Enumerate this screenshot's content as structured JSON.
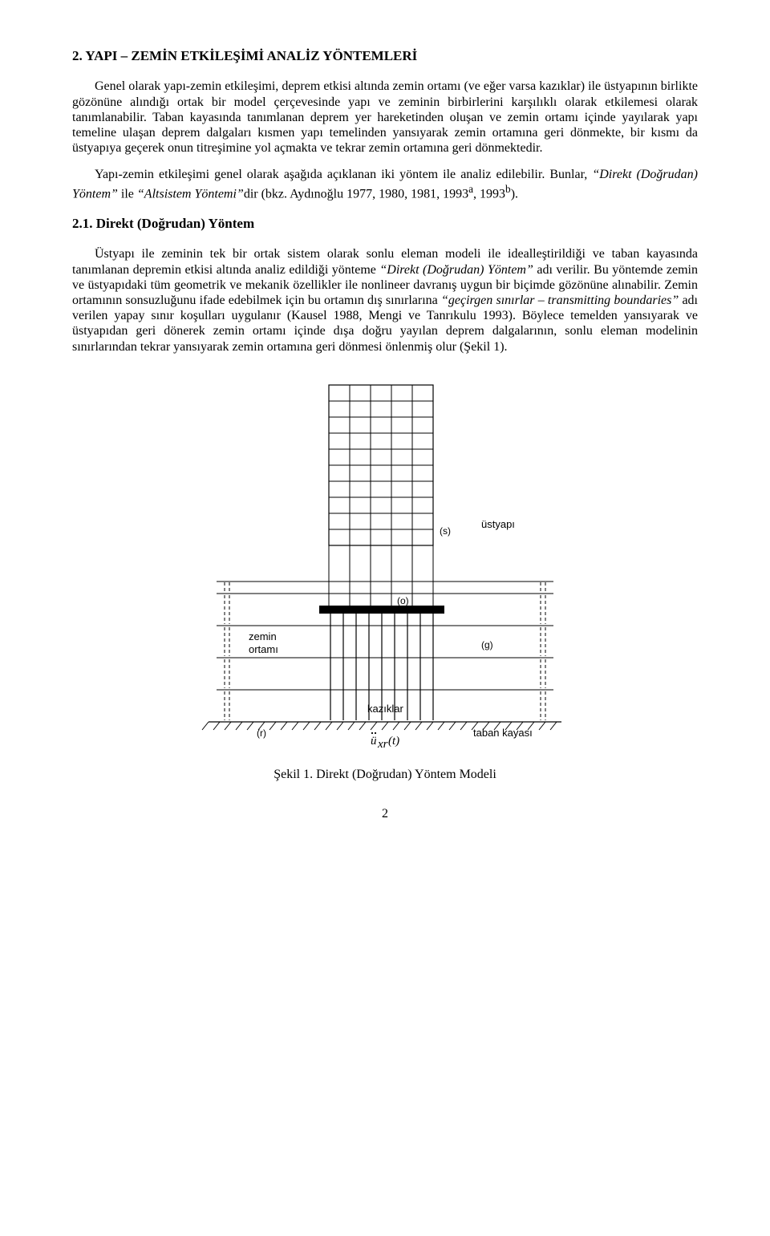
{
  "heading1": "2. YAPI – ZEMİN ETKİLEŞİMİ ANALİZ YÖNTEMLERİ",
  "para1a": "Genel olarak yapı-zemin etkileşimi, deprem etkisi altında zemin ortamı (ve eğer varsa kazıklar) ile üstyapının birlikte gözönüne alındığı ortak bir model çerçevesinde yapı ve zeminin birbirlerini karşılıklı olarak etkilemesi olarak tanımlanabilir. Taban kayasında tanımlanan deprem yer hareketinden oluşan ve zemin ortamı içinde yayılarak yapı temeline ulaşan deprem dalgaları kısmen yapı temelinden yansıyarak zemin ortamına geri dönmekte, bir kısmı da üstyapıya geçerek onun titreşimine yol açmakta ve tekrar zemin ortamına geri dönmektedir.",
  "para2_pre": "Yapı-zemin etkileşimi genel olarak aşağıda açıklanan iki yöntem ile analiz edilebilir. Bunlar, ",
  "para2_i1": "“Direkt (Doğrudan) Yöntem”",
  "para2_mid": " ile ",
  "para2_i2": "“Altsistem Yöntemi”",
  "para2_post": "dir (bkz. Aydınoğlu 1977, 1980, 1981, 1993",
  "para2_sup1": "a",
  "para2_postB": ", 1993",
  "para2_sup2": "b",
  "para2_end": ").",
  "heading2": "2.1. Direkt (Doğrudan) Yöntem",
  "para3_pre": "Üstyapı ile zeminin tek bir ortak sistem olarak sonlu eleman modeli ile idealleştirildiği ve taban kayasında tanımlanan depremin etkisi altında analiz edildiği yönteme ",
  "para3_i1": "“Direkt (Doğrudan) Yöntem”",
  "para3_midA": " adı verilir. Bu yöntemde zemin ve üstyapıdaki tüm geometrik ve mekanik özellikler ile nonlineer davranış uygun bir biçimde gözönüne alınabilir. Zemin ortamının sonsuzluğunu ifade edebilmek için bu ortamın dış sınırlarına ",
  "para3_i2": "“geçirgen sınırlar – transmitting boundaries”",
  "para3_midB": " adı verilen yapay sınır koşulları uygulanır (Kausel 1988, Mengi ve Tanrıkulu 1993). Böylece temelden yansıyarak ve üstyapıdan geri dönerek zemin ortamı içinde dışa doğru yayılan deprem dalgalarının, sonlu eleman modelinin sınırlarından tekrar yansıyarak zemin ortamına geri dönmesi önlenmiş olur (Şekil 1).",
  "fig": {
    "labels": {
      "s": "(s)",
      "o": "(o)",
      "g": "(g)",
      "r": "(r)",
      "ustyapi": "üstyapı",
      "zemin1": "zemin",
      "zemin2": "ortamı",
      "kaziklar": "kazıklar",
      "taban": "taban kayası",
      "u": "ü",
      "xr": "xr",
      "t": "(t)"
    },
    "caption": "Şekil 1. Direkt (Doğrudan) Yöntem Modeli",
    "building_x": [
      210,
      236,
      262,
      288,
      314,
      340
    ],
    "building_y": [
      10,
      30,
      50,
      70,
      90,
      110,
      130,
      150,
      170,
      190,
      210
    ],
    "pile_x": [
      212,
      228,
      244,
      260,
      276,
      292,
      308,
      324,
      340
    ],
    "soil_layers_y": [
      270,
      310,
      350,
      390
    ],
    "boundary_dash_y_pairs": [
      [
        256,
        268
      ],
      [
        272,
        308
      ],
      [
        312,
        348
      ],
      [
        352,
        388
      ],
      [
        392,
        428
      ]
    ],
    "hatch_x_start": 60,
    "hatch_x_end": 500,
    "hatch_spacing": 14,
    "colors": {
      "line": "#000000",
      "bg": "#ffffff"
    }
  },
  "pageno": "2"
}
